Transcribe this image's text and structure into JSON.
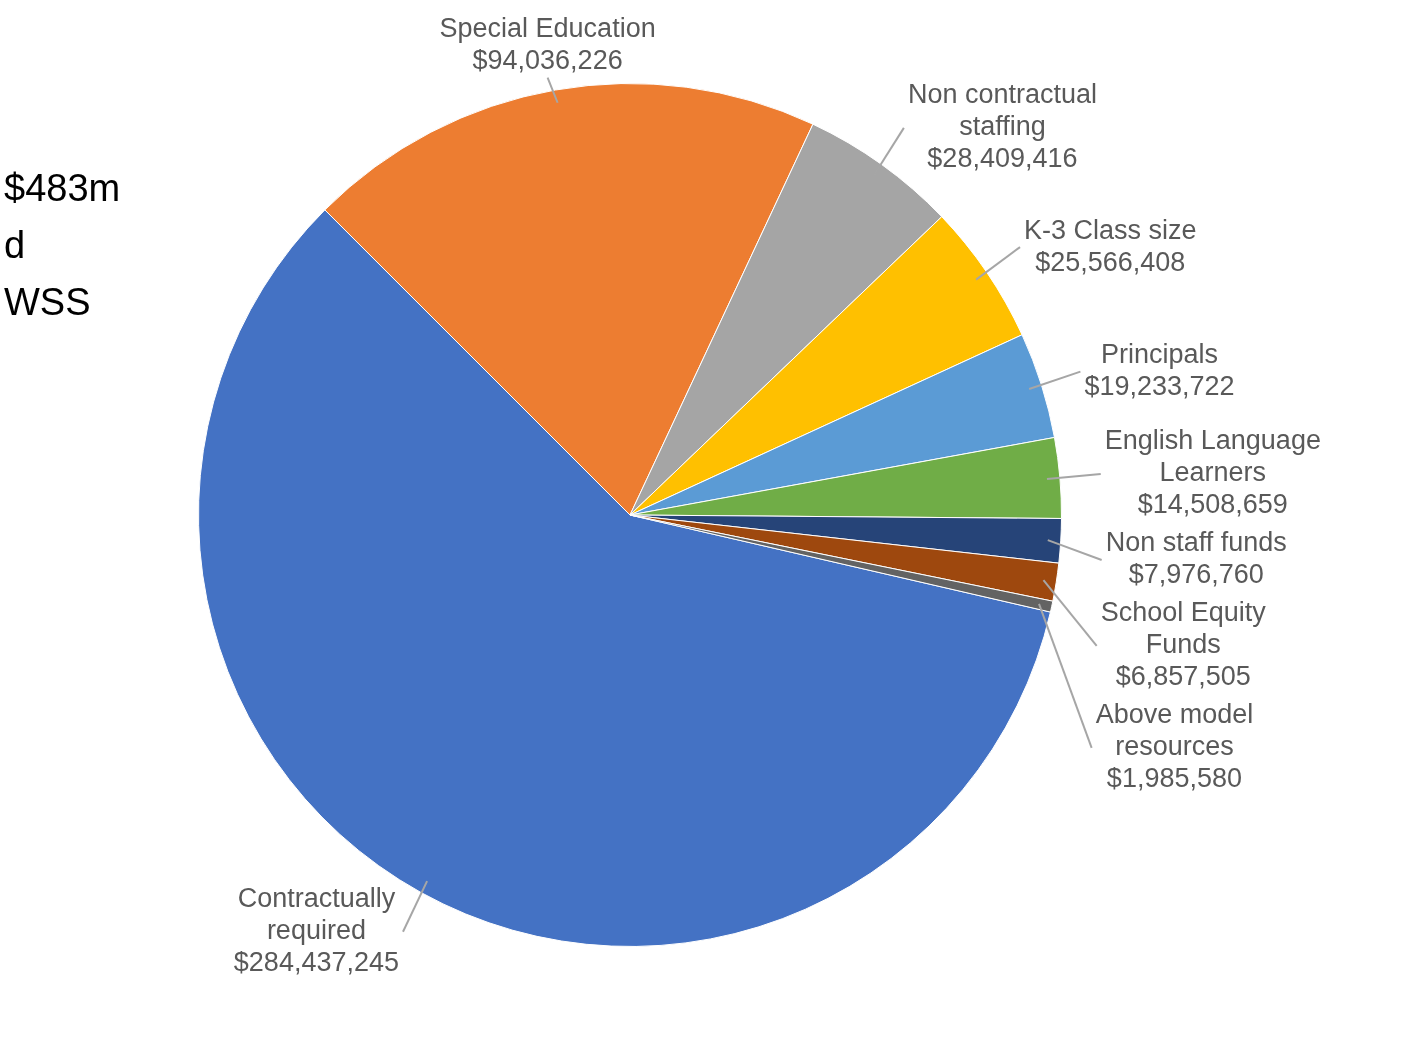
{
  "chart_data": {
    "type": "pie",
    "categories": [
      "Contractually required",
      "Special Education",
      "Non contractual staffing",
      "K-3 Class size",
      "Principals",
      "English Language Learners",
      "Non staff funds",
      "School Equity Funds",
      "Above model resources"
    ],
    "values": [
      284437245,
      94036226,
      28409416,
      25566408,
      19233722,
      14508659,
      7976760,
      6857505,
      1985580
    ],
    "colors": [
      "#4472c4",
      "#ed7d31",
      "#a5a5a5",
      "#ffc000",
      "#5b9bd5",
      "#70ad47",
      "#264478",
      "#9e480e",
      "#636363"
    ],
    "value_labels": [
      "$284,437,245",
      "$94,036,226",
      "$28,409,416",
      "$25,566,408",
      "$19,233,722",
      "$14,508,659",
      "$7,976,760",
      "$6,857,505",
      "$1,985,580"
    ],
    "annotations": [
      "$483m",
      "d",
      "WSS"
    ],
    "legend": false
  }
}
